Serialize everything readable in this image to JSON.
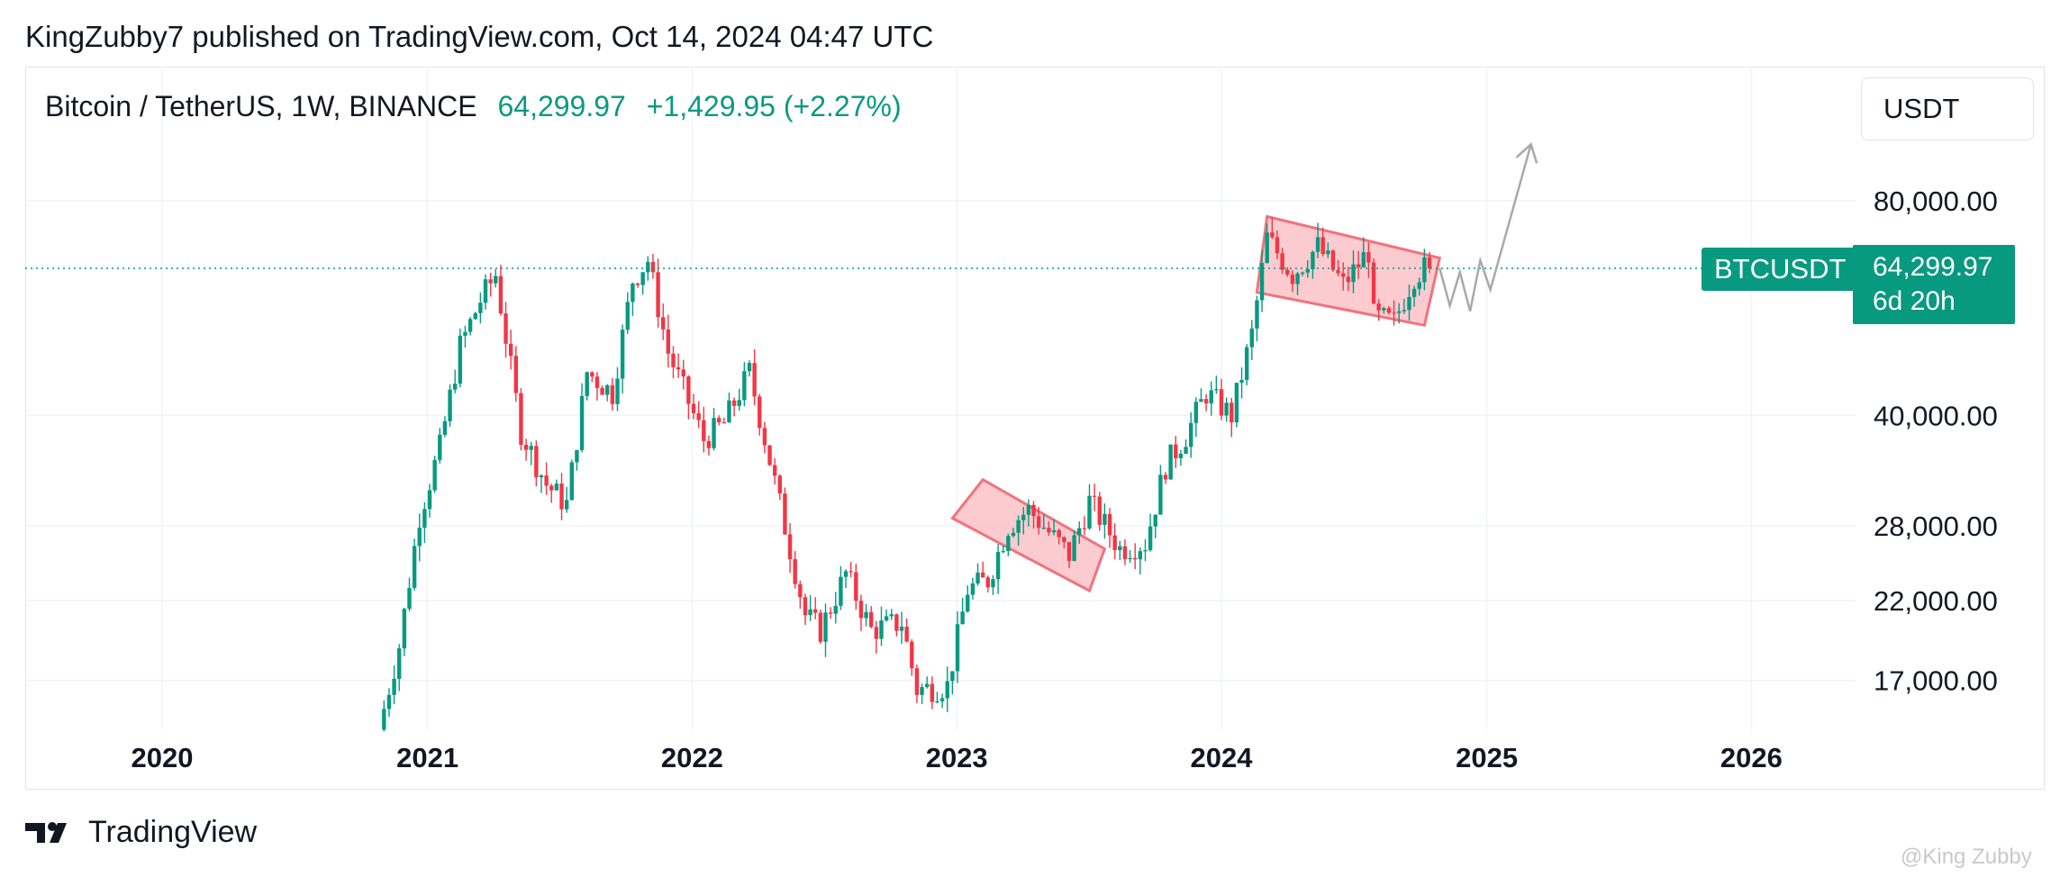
{
  "header": {
    "text": "KingZubby7 published on TradingView.com, Oct 14, 2024 04:47 UTC"
  },
  "symbol": {
    "name": "Bitcoin / TetherUS, 1W, BINANCE",
    "price": "64,299.97",
    "change": "+1,429.95 (+2.27%)"
  },
  "currency": "USDT",
  "price_tag": {
    "ticker": "BTCUSDT",
    "value": "64,299.97",
    "countdown": "6d 20h"
  },
  "brand": "TradingView",
  "watermark": "@King Zubby",
  "colors": {
    "up": "#089981",
    "down": "#f23645",
    "grid": "#f0f3fa",
    "pattern_fill": "#f7a1a8",
    "pattern_stroke": "#f2727d",
    "arrow": "#a9a9a9"
  },
  "chart_data": {
    "type": "candlestick",
    "scale": "log",
    "timeframe": "1W",
    "y_ticks": [
      17000,
      22000,
      28000,
      40000,
      80000
    ],
    "y_tick_labels": [
      "17,000.00",
      "22,000.00",
      "28,000.00",
      "40,000.00",
      "80,000.00"
    ],
    "x_ticks": [
      "2020",
      "2021",
      "2022",
      "2023",
      "2024",
      "2025",
      "2026"
    ],
    "last_price": 64299.97,
    "series_path": [
      [
        "2020-11-02",
        14500
      ],
      [
        "2020-11-30",
        19000
      ],
      [
        "2020-12-28",
        29000
      ],
      [
        "2021-01-25",
        36000
      ],
      [
        "2021-02-22",
        50000
      ],
      [
        "2021-03-22",
        58000
      ],
      [
        "2021-04-12",
        63000
      ],
      [
        "2021-05-17",
        38000
      ],
      [
        "2021-06-21",
        32000
      ],
      [
        "2021-07-19",
        30000
      ],
      [
        "2021-08-16",
        46000
      ],
      [
        "2021-09-20",
        43000
      ],
      [
        "2021-10-18",
        62000
      ],
      [
        "2021-11-08",
        66000
      ],
      [
        "2021-12-06",
        49000
      ],
      [
        "2022-01-24",
        37000
      ],
      [
        "2022-02-21",
        39000
      ],
      [
        "2022-03-28",
        46000
      ],
      [
        "2022-05-09",
        30000
      ],
      [
        "2022-06-13",
        21000
      ],
      [
        "2022-07-04",
        20000
      ],
      [
        "2022-08-08",
        24000
      ],
      [
        "2022-09-12",
        20000
      ],
      [
        "2022-10-24",
        20500
      ],
      [
        "2022-11-14",
        16500
      ],
      [
        "2022-12-26",
        16700
      ],
      [
        "2023-01-23",
        22800
      ],
      [
        "2023-02-20",
        23500
      ],
      [
        "2023-03-20",
        28000
      ],
      [
        "2023-04-17",
        29500
      ],
      [
        "2023-06-12",
        25500
      ],
      [
        "2023-07-10",
        30300
      ],
      [
        "2023-08-21",
        26000
      ],
      [
        "2023-09-25",
        26500
      ],
      [
        "2023-10-23",
        34000
      ],
      [
        "2023-11-20",
        37500
      ],
      [
        "2023-12-18",
        43000
      ],
      [
        "2024-01-22",
        40000
      ],
      [
        "2024-02-19",
        52000
      ],
      [
        "2024-03-11",
        71000
      ],
      [
        "2024-04-15",
        63000
      ],
      [
        "2024-05-20",
        69000
      ],
      [
        "2024-06-24",
        61000
      ],
      [
        "2024-07-29",
        68000
      ],
      [
        "2024-08-05",
        55000
      ],
      [
        "2024-09-02",
        54000
      ],
      [
        "2024-09-30",
        63000
      ],
      [
        "2024-10-14",
        64300
      ]
    ],
    "patterns": [
      {
        "type": "falling-channel",
        "corners": [
          [
            "2023-02-06",
            32500
          ],
          [
            "2023-07-24",
            26000
          ],
          [
            "2023-07-03",
            22700
          ],
          [
            "2022-12-26",
            28700
          ]
        ]
      },
      {
        "type": "falling-channel",
        "corners": [
          [
            "2024-03-04",
            76000
          ],
          [
            "2024-10-28",
            66500
          ],
          [
            "2024-10-07",
            53500
          ],
          [
            "2024-02-19",
            59500
          ]
        ]
      }
    ],
    "projection": [
      [
        "2024-10-28",
        64300
      ],
      [
        "2024-11-11",
        57000
      ],
      [
        "2024-11-25",
        63500
      ],
      [
        "2024-12-09",
        56000
      ],
      [
        "2024-12-23",
        66000
      ],
      [
        "2025-01-06",
        60000
      ],
      [
        "2025-03-03",
        96000
      ]
    ]
  }
}
